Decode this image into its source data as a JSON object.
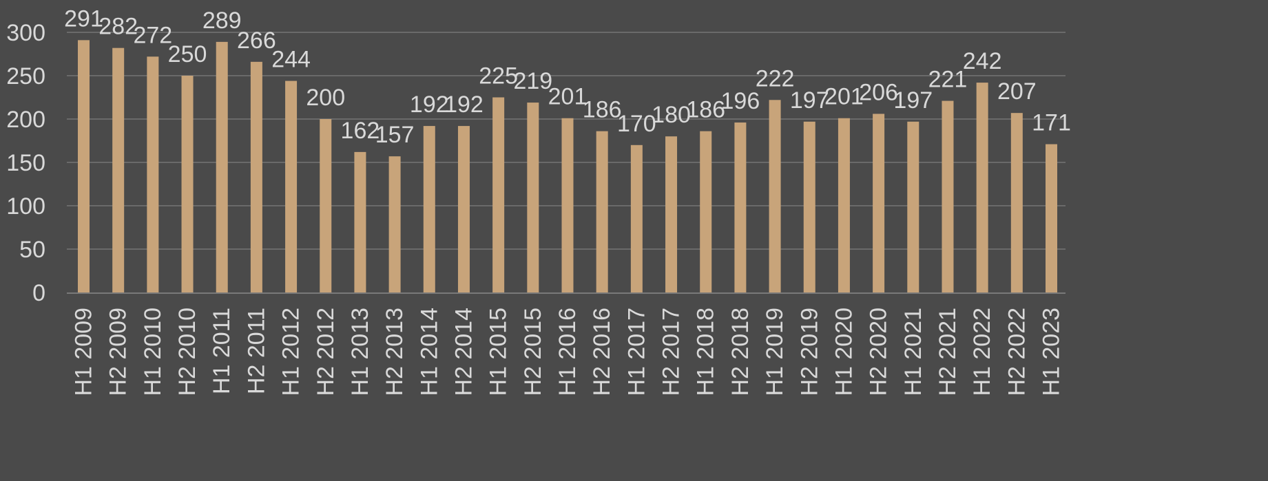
{
  "chart_data": {
    "type": "bar",
    "title": "",
    "xlabel": "",
    "ylabel": "",
    "ylim": [
      0,
      300
    ],
    "yticks": [
      0,
      50,
      100,
      150,
      200,
      250,
      300
    ],
    "grid": true,
    "categories": [
      "H1 2009",
      "H2 2009",
      "H1 2010",
      "H2 2010",
      "H1 2011",
      "H2 2011",
      "H1 2012",
      "H2 2012",
      "H1 2013",
      "H2 2013",
      "H1 2014",
      "H2 2014",
      "H1 2015",
      "H2 2015",
      "H1 2016",
      "H2 2016",
      "H1 2017",
      "H2 2017",
      "H1 2018",
      "H2 2018",
      "H1 2019",
      "H2 2019",
      "H1 2020",
      "H2 2020",
      "H1 2021",
      "H2 2021",
      "H1 2022",
      "H2 2022",
      "H1 2023"
    ],
    "values": [
      291,
      282,
      272,
      250,
      289,
      266,
      244,
      200,
      162,
      157,
      192,
      192,
      225,
      219,
      201,
      186,
      170,
      180,
      186,
      196,
      222,
      197,
      201,
      206,
      197,
      221,
      242,
      207,
      171
    ],
    "data_labels": true
  },
  "colors": {
    "background": "#4a4a4a",
    "bar": "#c8a47a",
    "grid": "#6a6a6a",
    "axis": "#7a7a7a",
    "text": "#d9d9d9"
  }
}
